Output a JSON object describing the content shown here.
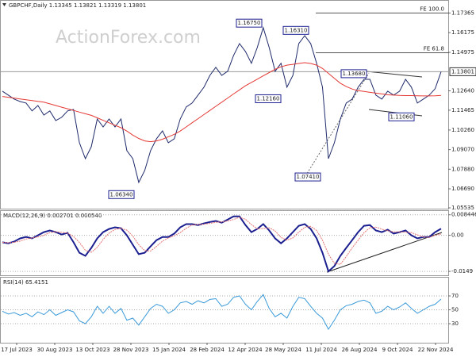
{
  "chart_data": [
    {
      "type": "line",
      "title": "GBPCHF,Daily  1.13345 1.13821 1.13319 1.13801",
      "watermark": "ActionForex.com",
      "series": [
        {
          "color": "#1f2a6b",
          "values": [
            1.1262,
            1.1238,
            1.1214,
            1.1199,
            1.119,
            1.1142,
            1.1175,
            1.1117,
            1.1142,
            1.1084,
            1.1103,
            1.1142,
            1.1151,
            1.0949,
            1.0852,
            1.0925,
            1.1093,
            1.1045,
            1.1093,
            1.1045,
            1.1093,
            1.0901,
            1.0852,
            1.0708,
            1.078,
            1.0901,
            1.0973,
            1.1021,
            1.0949,
            1.0973,
            1.1093,
            1.1166,
            1.119,
            1.1238,
            1.1286,
            1.1358,
            1.1407,
            1.1358,
            1.1383,
            1.1479,
            1.1551,
            1.1503,
            1.1431,
            1.1527,
            1.1648,
            1.1527,
            1.1383,
            1.1431,
            1.1286,
            1.1358,
            1.1551,
            1.1599,
            1.1551,
            1.1431,
            1.1286,
            1.0852,
            1.0949,
            1.1093,
            1.119,
            1.1214,
            1.1286,
            1.1334,
            1.1334,
            1.1238,
            1.1214,
            1.1262,
            1.1238,
            1.1262,
            1.1334,
            1.1286,
            1.119,
            1.1214,
            1.1238,
            1.1277,
            1.13801
          ]
        },
        {
          "color": "#e53935",
          "values": [
            1.123,
            1.1225,
            1.122,
            1.1215,
            1.121,
            1.1205,
            1.12,
            1.1195,
            1.1185,
            1.1175,
            1.1165,
            1.1155,
            1.1145,
            1.1135,
            1.1125,
            1.1115,
            1.11,
            1.1085,
            1.107,
            1.1055,
            1.104,
            1.102,
            1.0995,
            1.0975,
            1.096,
            1.0955,
            1.096,
            1.097,
            1.0985,
            1.1,
            1.102,
            1.1045,
            1.107,
            1.1095,
            1.112,
            1.1145,
            1.117,
            1.1195,
            1.122,
            1.1245,
            1.127,
            1.1295,
            1.1315,
            1.1335,
            1.1355,
            1.1375,
            1.1395,
            1.141,
            1.142,
            1.1425,
            1.143,
            1.1435,
            1.143,
            1.142,
            1.14,
            1.137,
            1.134,
            1.131,
            1.129,
            1.1275,
            1.1265,
            1.126,
            1.1255,
            1.125,
            1.1245,
            1.124,
            1.1238,
            1.1236,
            1.1235,
            1.1235,
            1.1234,
            1.1233,
            1.1233,
            1.1234,
            1.1236
          ]
        }
      ],
      "ylim": [
        1.05535,
        1.1777
      ],
      "yticks": [
        1.17365,
        {
          "value": 1.16175,
          "label": "1.16175"
        },
        1.14975,
        {
          "value": 1.1264,
          "label": "1.12640"
        },
        1.11465,
        {
          "value": 1.1026,
          "label": "1.10260"
        },
        {
          "value": 1.0907,
          "label": "1.09070"
        },
        {
          "value": 1.0788,
          "label": "1.07880"
        },
        {
          "value": 1.0669,
          "label": "1.06690"
        },
        1.05535
      ],
      "last_price": 1.13801,
      "levels": [
        {
          "value": 1.17365,
          "label": "FE 100.0"
        },
        {
          "value": 1.1495,
          "label": "FE 61.8"
        }
      ],
      "annotations": [
        {
          "value": 1.1675,
          "label": "1.16750"
        },
        {
          "value": 1.1631,
          "label": "1.16310"
        },
        {
          "value": 1.1368,
          "label": "1.13680"
        },
        {
          "value": 1.1216,
          "label": "1.12160"
        },
        {
          "value": 1.1106,
          "label": "1.11060"
        },
        {
          "value": 1.0741,
          "label": "1.07410"
        },
        {
          "value": 1.0634,
          "label": "1.06340"
        }
      ]
    },
    {
      "type": "line",
      "title": "MACD(12,26,9) 0.002701 0.000540",
      "series": [
        {
          "color": "#1c1f8f",
          "values": [
            -0.0029,
            -0.0033,
            -0.0026,
            -0.0013,
            -0.0007,
            -0.0013,
            0,
            0.0013,
            0.002,
            0.0013,
            0.0003,
            0.001,
            -0.0029,
            -0.0072,
            -0.0085,
            -0.0052,
            -0.0013,
            0.0013,
            0.0026,
            0.0033,
            0.0029,
            0,
            -0.0039,
            -0.0078,
            -0.0072,
            -0.0046,
            -0.002,
            -0.0007,
            -0.0007,
            0.0007,
            0.0033,
            0.0046,
            0.0046,
            0.0042,
            0.0049,
            0.0055,
            0.0059,
            0.0052,
            0.0065,
            0.0078,
            0.0078,
            0.0042,
            0.0013,
            0.0026,
            0.0046,
            0.002,
            -0.0013,
            -0.0033,
            -0.0013,
            0.0013,
            0.0039,
            0.0046,
            0.0026,
            -0.0013,
            -0.0072,
            -0.0149,
            -0.0127,
            -0.0085,
            -0.0052,
            -0.002,
            0.0013,
            0.0039,
            0.0042,
            0.002,
            0.0013,
            0.0023,
            0.0007,
            0.0013,
            0.002,
            0,
            -0.0013,
            -0.0007,
            -0.0007,
            0.0013,
            0.0027
          ]
        },
        {
          "color": "#e57373",
          "values": [
            -0.0029,
            -0.0031,
            -0.0029,
            -0.0024,
            -0.0015,
            -0.0011,
            -0.0007,
            0,
            0.0011,
            0.0015,
            0.0012,
            0.0009,
            -0.0005,
            -0.003,
            -0.0062,
            -0.007,
            -0.005,
            -0.0017,
            0.0009,
            0.0024,
            0.0029,
            0.0021,
            -0.0003,
            -0.0039,
            -0.0063,
            -0.0065,
            -0.0046,
            -0.0024,
            -0.0011,
            -0.0002,
            0.0011,
            0.0029,
            0.0042,
            0.0045,
            0.0046,
            0.0049,
            0.0054,
            0.0055,
            0.0059,
            0.0065,
            0.0074,
            0.0066,
            0.0044,
            0.0027,
            0.0028,
            0.0031,
            0.0018,
            -0.0009,
            -0.002,
            -0.0011,
            0.0013,
            0.0033,
            0.0037,
            0.002,
            -0.002,
            -0.0078,
            -0.0116,
            -0.012,
            -0.0088,
            -0.0052,
            -0.002,
            0.0011,
            0.0031,
            0.0034,
            0.0025,
            0.0019,
            0.0014,
            0.0014,
            0.0013,
            0.0011,
            0.0002,
            -0.0007,
            -0.0009,
            0,
            0.0005
          ]
        }
      ],
      "ylim": [
        -0.0165,
        0.01
      ],
      "yticks": [
        0.008446,
        {
          "value": 0,
          "label": "0.00"
        },
        -0.0149
      ],
      "grid": true
    },
    {
      "type": "line",
      "title": "RSI(14) 65.4151",
      "series": [
        {
          "color": "#3a9ad9",
          "values": [
            48,
            44,
            46,
            42,
            45,
            40,
            47,
            43,
            50,
            42,
            46,
            50,
            47,
            34,
            30,
            40,
            55,
            45,
            55,
            45,
            52,
            35,
            38,
            28,
            40,
            52,
            58,
            55,
            45,
            50,
            60,
            62,
            58,
            63,
            60,
            65,
            66,
            55,
            58,
            68,
            70,
            58,
            50,
            62,
            72,
            52,
            40,
            45,
            38,
            55,
            68,
            66,
            55,
            45,
            38,
            22,
            35,
            50,
            56,
            58,
            62,
            64,
            60,
            45,
            48,
            55,
            50,
            54,
            60,
            52,
            45,
            50,
            55,
            58,
            65.4151
          ]
        }
      ],
      "ylim": [
        2.6,
        96.3
      ],
      "yticks": [
        70,
        50,
        30
      ],
      "grid": true,
      "x_tick_labels": [
        "17 Jul 2023",
        "30 Aug 2023",
        "13 Oct 2023",
        "28 Nov 2023",
        "15 Jan 2024",
        "28 Feb 2024",
        "12 Apr 2024",
        "28 May 2024",
        "11 Jul 2024",
        "26 Aug 2024",
        "9 Oct 2024",
        "22 Nov 2024"
      ]
    }
  ]
}
